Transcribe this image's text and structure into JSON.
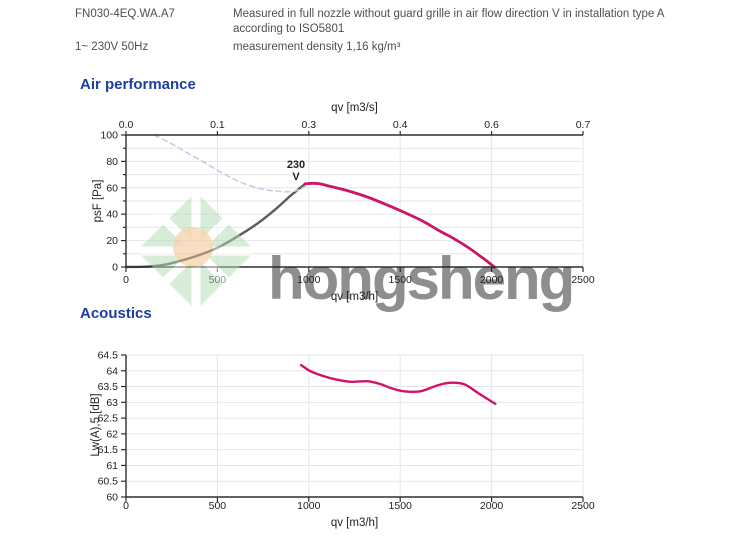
{
  "header": {
    "model": "FN030-4EQ.WA.A7",
    "description": "Measured in full nozzle without guard grille in air flow direction V in installation type A according to ISO5801",
    "power": "1~ 230V 50Hz",
    "density": "measurement density 1,16 kg/m³"
  },
  "sections": {
    "air_performance": "Air performance",
    "acoustics": "Acoustics"
  },
  "watermark": {
    "text": "hongsheng",
    "text_color": "#a8d6a8",
    "logo_color": "#b2ddb2",
    "sun_color": "#f2a95f"
  },
  "colors": {
    "heading": "#1c3f9e",
    "body_text": "#4f4f4f",
    "axis": "#2e2e2e",
    "grid": "#e2e6eb",
    "pink": "#ce1467",
    "gray": "#595f5a",
    "dashed": "#c4cfdf"
  },
  "chart_data": [
    {
      "id": "air-performance",
      "type": "line",
      "xlabel": "qv [m3/h]",
      "x2label": "qv [m3/s]",
      "ylabel": "psF [Pa]",
      "xlim": [
        0,
        2500
      ],
      "ylim": [
        0,
        100
      ],
      "x_ticks": [
        0,
        500,
        1000,
        1500,
        2000,
        2500
      ],
      "x_tick_labels": [
        "0",
        "500",
        "1000",
        "1500",
        "2000",
        "2500"
      ],
      "x2_tick_labels": [
        "0.0",
        "0.1",
        "0.3",
        "0.4",
        "0.6",
        "0.7"
      ],
      "y_ticks": [
        0,
        20,
        40,
        60,
        80,
        100
      ],
      "y_tick_labels": [
        "0",
        "20",
        "40",
        "60",
        "80",
        "100"
      ],
      "y_grid_step": 10,
      "y_minor_step": 10,
      "grid": true,
      "legend": "none",
      "annotation": {
        "label1": "230",
        "label2": "V",
        "x": 930,
        "y": 75,
        "color": "#d4156d"
      },
      "series": [
        {
          "name": "fan-curve-rising",
          "color": "#595f5a",
          "style": "solid",
          "width": 2.4,
          "points": [
            [
              0,
              0
            ],
            [
              120,
              0.3
            ],
            [
              220,
              2
            ],
            [
              320,
              5.5
            ],
            [
              420,
              10
            ],
            [
              520,
              16
            ],
            [
              620,
              24
            ],
            [
              720,
              33
            ],
            [
              820,
              44
            ],
            [
              900,
              54
            ],
            [
              945,
              59
            ],
            [
              980,
              63
            ]
          ]
        },
        {
          "name": "fan-curve-230V",
          "color": "#ce1467",
          "style": "solid",
          "width": 2.8,
          "points": [
            [
              980,
              63
            ],
            [
              1020,
              63.4
            ],
            [
              1060,
              63
            ],
            [
              1120,
              61
            ],
            [
              1220,
              57.5
            ],
            [
              1320,
              53
            ],
            [
              1420,
              47.5
            ],
            [
              1520,
              41.5
            ],
            [
              1620,
              35
            ],
            [
              1720,
              27
            ],
            [
              1800,
              21
            ],
            [
              1880,
              14
            ],
            [
              1950,
              7
            ],
            [
              2015,
              0
            ]
          ]
        },
        {
          "name": "system-limit-dashed",
          "color": "#c4cfdf",
          "style": "dashed",
          "width": 1.6,
          "points": [
            [
              155,
              100
            ],
            [
              240,
              94
            ],
            [
              330,
              87
            ],
            [
              430,
              79
            ],
            [
              530,
              71
            ],
            [
              630,
              64
            ],
            [
              730,
              59.5
            ],
            [
              820,
              57.5
            ],
            [
              890,
              57
            ],
            [
              945,
              58.5
            ],
            [
              985,
              61.5
            ]
          ]
        }
      ]
    },
    {
      "id": "acoustics",
      "type": "line",
      "xlabel": "qv [m3/h]",
      "ylabel": "Lw(A),5 [dB]",
      "xlim": [
        0,
        2500
      ],
      "ylim": [
        60,
        64.5
      ],
      "x_ticks": [
        0,
        500,
        1000,
        1500,
        2000,
        2500
      ],
      "x_tick_labels": [
        "0",
        "500",
        "1000",
        "1500",
        "2000",
        "2500"
      ],
      "y_ticks": [
        60,
        60.5,
        61,
        61.5,
        62,
        62.5,
        63,
        63.5,
        64,
        64.5
      ],
      "y_tick_labels": [
        "60",
        "60.5",
        "61",
        "61.5",
        "62",
        "62.5",
        "63",
        "63.5",
        "64",
        "64.5"
      ],
      "y_grid_step": 0.5,
      "grid": true,
      "legend": "none",
      "series": [
        {
          "name": "noise-curve",
          "color": "#ce1467",
          "style": "solid",
          "width": 2.4,
          "points": [
            [
              958,
              64.18
            ],
            [
              1005,
              64.0
            ],
            [
              1055,
              63.88
            ],
            [
              1130,
              63.75
            ],
            [
              1230,
              63.65
            ],
            [
              1320,
              63.67
            ],
            [
              1390,
              63.58
            ],
            [
              1450,
              63.45
            ],
            [
              1520,
              63.35
            ],
            [
              1610,
              63.35
            ],
            [
              1700,
              63.53
            ],
            [
              1770,
              63.62
            ],
            [
              1850,
              63.57
            ],
            [
              1930,
              63.28
            ],
            [
              2020,
              62.95
            ]
          ]
        }
      ]
    }
  ]
}
